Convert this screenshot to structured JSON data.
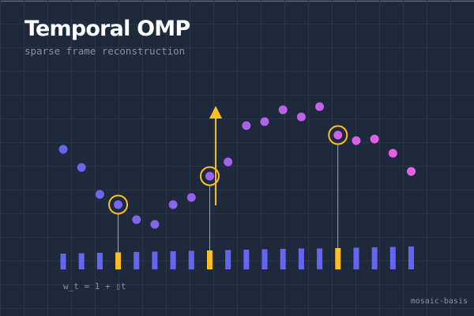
{
  "title": "Temporal OMP",
  "subtitle": "sparse frame reconstruction",
  "formula": "w_t = 1 + ▯t",
  "brand": "mosaic-basis",
  "colors": {
    "background": "#1e293b",
    "grid": "#2a3648",
    "accent": "#6366f1",
    "selected": "#fbbf24",
    "signal_start": "#6366f1",
    "signal_end": "#ec5fe6",
    "text_muted": "#8391a7"
  },
  "chart_data": {
    "type": "scatter",
    "frames": 20,
    "signal": [
      111,
      88,
      54,
      41,
      22,
      16,
      41,
      50,
      77,
      95,
      141,
      146,
      161,
      152,
      165,
      129,
      122,
      124,
      106,
      83
    ],
    "weights": [
      20,
      20.5,
      21,
      21.5,
      22,
      22.5,
      23,
      23.5,
      24,
      24.5,
      25,
      25.5,
      26,
      26.5,
      26.5,
      27,
      27.5,
      28,
      28.5,
      29
    ],
    "selected_frames": [
      3,
      8,
      15
    ],
    "arrow_frame_between": [
      8,
      9
    ],
    "grid": true
  }
}
